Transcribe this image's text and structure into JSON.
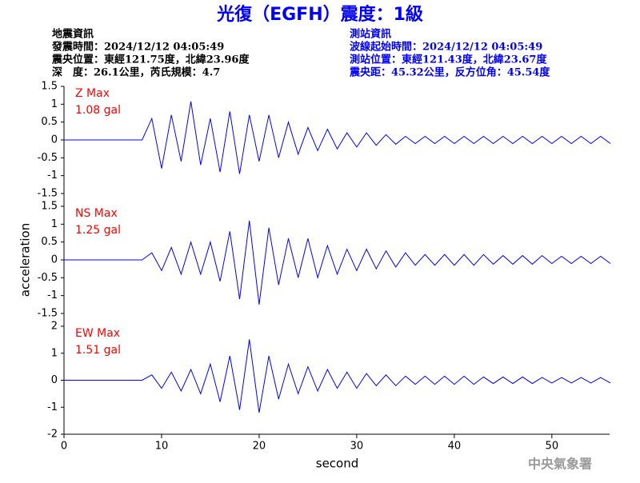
{
  "header": {
    "title": "光復（EGFH）震度：1級",
    "left": [
      "地震資訊",
      "發震時間：2024/12/12 04:05:49",
      "震央位置：東經121.75度，北緯23.96度",
      "深　度：26.1公里，芮氏規模：4.7"
    ],
    "right": [
      "測站資訊",
      "波線起始時間：2024/12/12 04:05:49",
      "測站位置：東經121.43度，北緯23.67度",
      "震央距：45.32公里，反方位角：45.54度"
    ],
    "agency": "中央氣象署"
  },
  "chart_data": [
    {
      "type": "line",
      "label": "Z Max",
      "max_label": "1.08 gal",
      "color": "#0000ff",
      "x": [
        0,
        1,
        2,
        3,
        4,
        5,
        6,
        7,
        8,
        9,
        10,
        11,
        12,
        13,
        14,
        15,
        16,
        17,
        18,
        19,
        20,
        21,
        22,
        23,
        24,
        25,
        26,
        27,
        28,
        29,
        30,
        31,
        32,
        33,
        34,
        35,
        36,
        37,
        38,
        39,
        40,
        41,
        42,
        43,
        44,
        45,
        46,
        47,
        48,
        49,
        50,
        51,
        52,
        53,
        54,
        55,
        56
      ],
      "values": [
        0,
        0,
        0,
        0,
        0,
        0,
        0,
        0,
        0,
        0.6,
        -0.8,
        0.7,
        -0.6,
        1.08,
        -0.7,
        0.6,
        -0.9,
        0.8,
        -0.95,
        0.7,
        -0.6,
        0.7,
        -0.5,
        0.5,
        -0.4,
        0.35,
        -0.3,
        0.3,
        -0.25,
        0.2,
        -0.2,
        0.2,
        -0.15,
        0.15,
        -0.12,
        0.1,
        -0.1,
        0.1,
        -0.1,
        0.1,
        -0.1,
        0.1,
        -0.1,
        0.1,
        -0.1,
        0.1,
        -0.1,
        0.1,
        -0.1,
        0.1,
        -0.1,
        0.1,
        -0.1,
        0.1,
        -0.1,
        0.1,
        -0.1
      ],
      "xlim": [
        0,
        56
      ],
      "ylim": [
        -1.5,
        1.5
      ],
      "yticks": [
        1.5,
        1,
        0.5,
        0,
        -0.5,
        -1,
        -1.5
      ]
    },
    {
      "type": "line",
      "label": "NS Max",
      "max_label": "1.25 gal",
      "color": "#0000ff",
      "ylabel": "acceleration",
      "x": [
        0,
        1,
        2,
        3,
        4,
        5,
        6,
        7,
        8,
        9,
        10,
        11,
        12,
        13,
        14,
        15,
        16,
        17,
        18,
        19,
        20,
        21,
        22,
        23,
        24,
        25,
        26,
        27,
        28,
        29,
        30,
        31,
        32,
        33,
        34,
        35,
        36,
        37,
        38,
        39,
        40,
        41,
        42,
        43,
        44,
        45,
        46,
        47,
        48,
        49,
        50,
        51,
        52,
        53,
        54,
        55,
        56
      ],
      "values": [
        0,
        0,
        0,
        0,
        0,
        0,
        0,
        0,
        0,
        0.2,
        -0.3,
        0.35,
        -0.4,
        0.5,
        -0.4,
        0.5,
        -0.6,
        0.8,
        -1.1,
        1.1,
        -1.25,
        0.9,
        -0.7,
        0.6,
        -0.5,
        0.6,
        -0.5,
        0.4,
        -0.4,
        0.3,
        -0.3,
        0.3,
        -0.25,
        0.25,
        -0.2,
        0.2,
        -0.15,
        0.15,
        -0.15,
        0.15,
        -0.15,
        0.15,
        -0.15,
        0.15,
        -0.12,
        0.12,
        -0.12,
        0.12,
        -0.12,
        0.12,
        -0.1,
        0.1,
        -0.1,
        0.1,
        -0.1,
        0.1,
        -0.1
      ],
      "xlim": [
        0,
        56
      ],
      "ylim": [
        -1.5,
        1.5
      ],
      "yticks": [
        1.5,
        1,
        0.5,
        0,
        -0.5,
        -1,
        -1.5
      ]
    },
    {
      "type": "line",
      "label": "EW Max",
      "max_label": "1.51 gal",
      "color": "#0000ff",
      "xlabel": "second",
      "x": [
        0,
        1,
        2,
        3,
        4,
        5,
        6,
        7,
        8,
        9,
        10,
        11,
        12,
        13,
        14,
        15,
        16,
        17,
        18,
        19,
        20,
        21,
        22,
        23,
        24,
        25,
        26,
        27,
        28,
        29,
        30,
        31,
        32,
        33,
        34,
        35,
        36,
        37,
        38,
        39,
        40,
        41,
        42,
        43,
        44,
        45,
        46,
        47,
        48,
        49,
        50,
        51,
        52,
        53,
        54,
        55,
        56
      ],
      "values": [
        0,
        0,
        0,
        0,
        0,
        0,
        0,
        0,
        0,
        0.2,
        -0.3,
        0.3,
        -0.4,
        0.4,
        -0.5,
        0.6,
        -0.8,
        0.9,
        -1.1,
        1.51,
        -1.2,
        0.9,
        -0.7,
        0.6,
        -0.5,
        0.5,
        -0.4,
        0.4,
        -0.3,
        0.3,
        -0.3,
        0.25,
        -0.2,
        0.2,
        -0.2,
        0.15,
        -0.15,
        0.15,
        -0.15,
        0.15,
        -0.15,
        0.15,
        -0.15,
        0.12,
        -0.12,
        0.12,
        -0.12,
        0.12,
        -0.12,
        0.1,
        -0.1,
        0.1,
        -0.1,
        0.1,
        -0.1,
        0.1,
        -0.1
      ],
      "xlim": [
        0,
        56
      ],
      "ylim": [
        -2,
        2
      ],
      "yticks": [
        2,
        1,
        0,
        -1,
        -2
      ],
      "xticks": [
        0,
        10,
        20,
        30,
        40,
        50
      ]
    }
  ]
}
